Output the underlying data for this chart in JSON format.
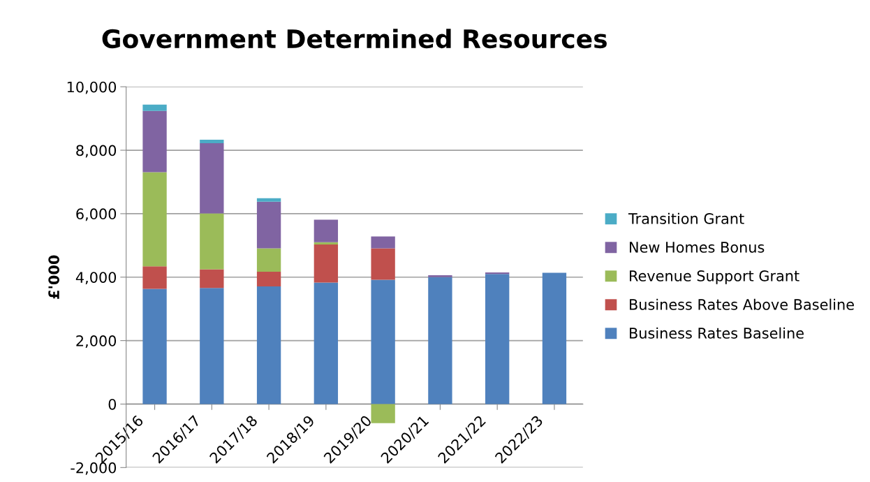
{
  "chart_data": {
    "type": "bar",
    "title": "Government Determined Resources",
    "ylabel": "£'000",
    "stacked": true,
    "categories": [
      "2015/16",
      "2016/17",
      "2017/18",
      "2018/19",
      "2019/20",
      "2020/21",
      "2021/22",
      "2022/23"
    ],
    "series": [
      {
        "name": "Business Rates Baseline",
        "color": "#4f81bd",
        "values": [
          3630,
          3660,
          3710,
          3830,
          3920,
          4000,
          4100,
          4140
        ]
      },
      {
        "name": "Business Rates Above Baseline",
        "color": "#c0504d",
        "values": [
          710,
          590,
          460,
          1200,
          990,
          null,
          null,
          null
        ]
      },
      {
        "name": "Revenue Support Grant",
        "color": "#9bbb59",
        "values": [
          2970,
          1760,
          740,
          70,
          -600,
          null,
          null,
          null
        ]
      },
      {
        "name": "New Homes Bonus",
        "color": "#8064a2",
        "values": [
          1930,
          2210,
          1470,
          710,
          370,
          60,
          50,
          null
        ]
      },
      {
        "name": "Transition Grant",
        "color": "#4bacc6",
        "values": [
          200,
          110,
          110,
          null,
          null,
          null,
          null,
          null
        ]
      }
    ],
    "ylim": [
      -2000,
      10000
    ],
    "yticks": [
      {
        "value": -2000,
        "label": "-2,000"
      },
      {
        "value": 0,
        "label": "0"
      },
      {
        "value": 2000,
        "label": "2,000"
      },
      {
        "value": 4000,
        "label": "4,000"
      },
      {
        "value": 6000,
        "label": "6,000"
      },
      {
        "value": 8000,
        "label": "8,000"
      },
      {
        "value": 10000,
        "label": "10,000"
      }
    ],
    "grid": "y",
    "legend": "right"
  }
}
